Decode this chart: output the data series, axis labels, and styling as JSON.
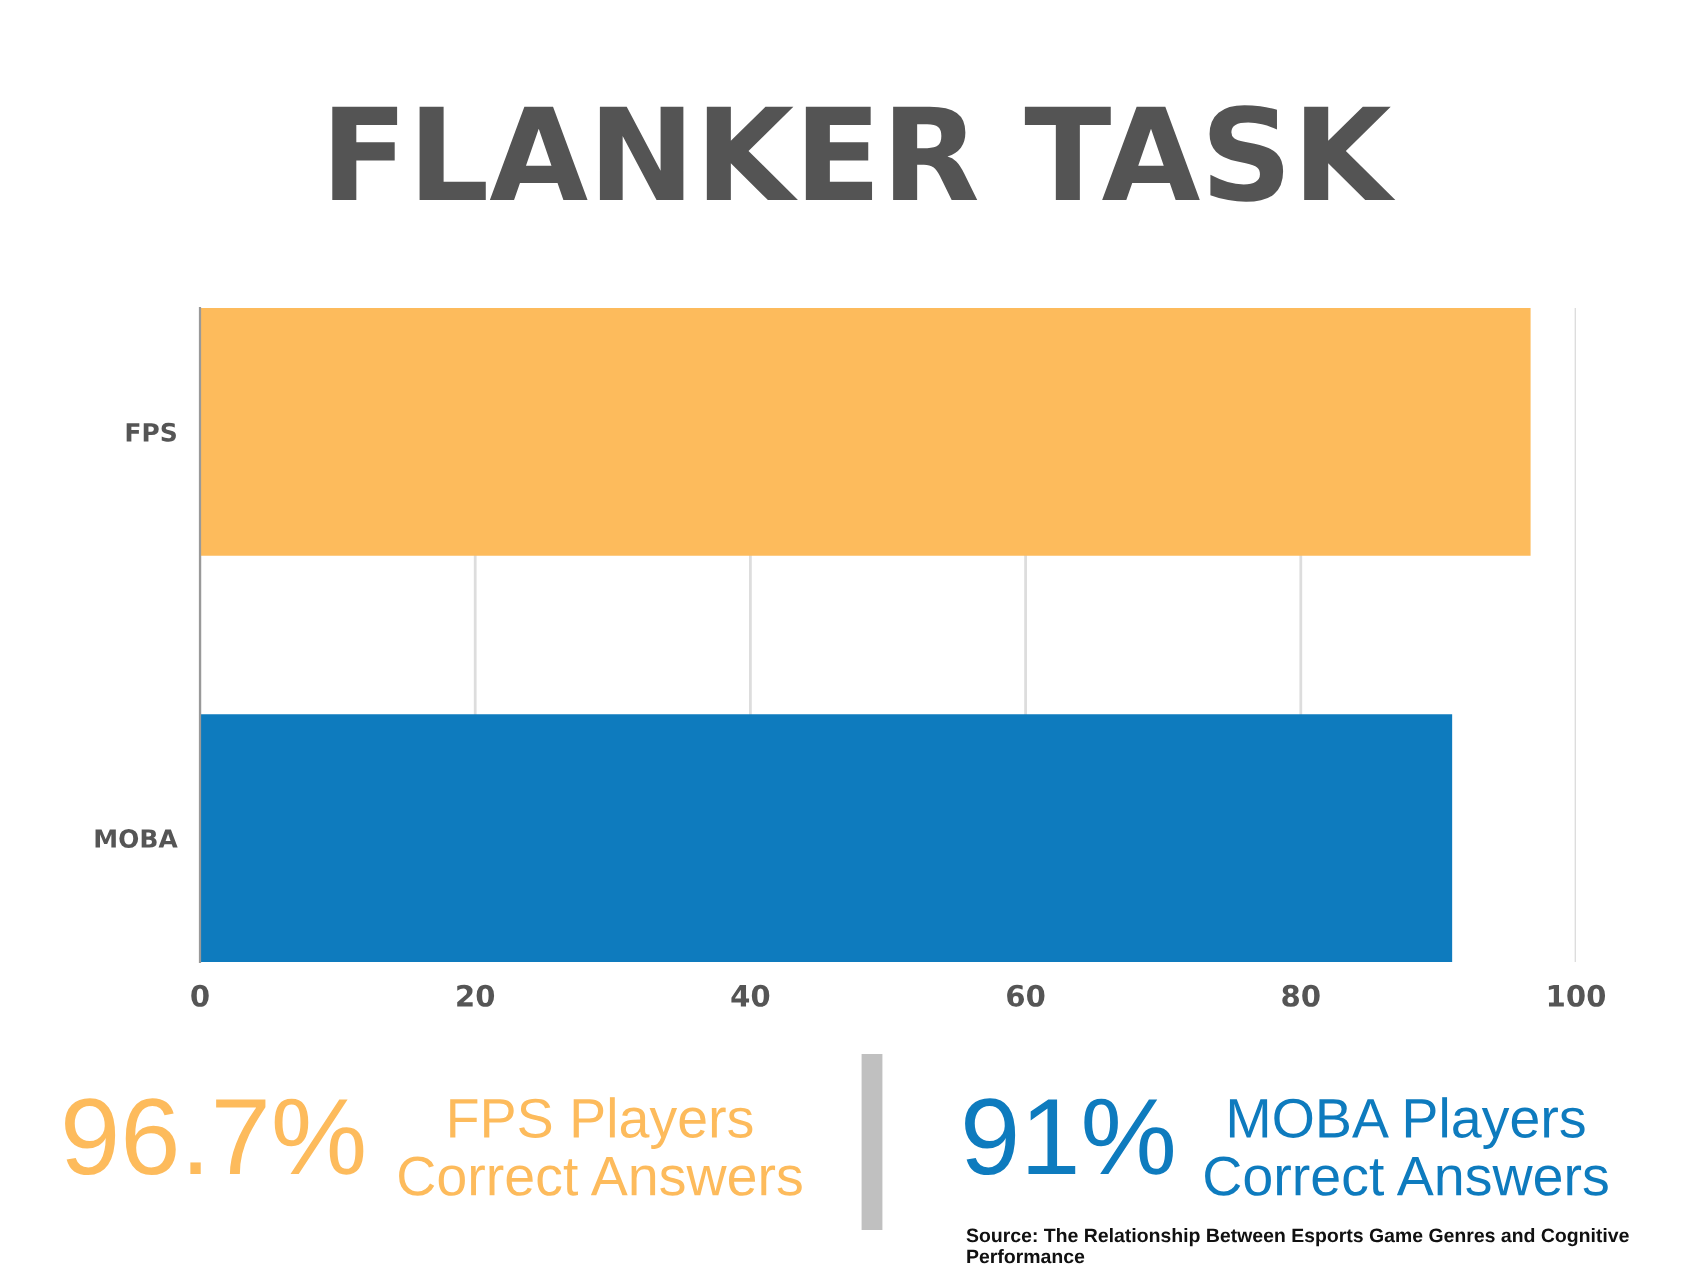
{
  "chart_data": {
    "type": "bar",
    "orientation": "horizontal",
    "title": "FLANKER TASK",
    "categories": [
      "FPS",
      "MOBA"
    ],
    "values": [
      96.7,
      91
    ],
    "colors": [
      "#fdbb5c",
      "#0e7bbe"
    ],
    "xlim": [
      0,
      100
    ],
    "xticks": [
      0,
      20,
      40,
      60,
      80,
      100
    ],
    "grid": "x",
    "annotations": [
      "96.7%",
      "FPS Players\nCorrect Answers",
      "91%",
      "MOBA Players\nCorrect Answers",
      "Source: The Relationship Between Esports Game Genres and Cognitive Performance"
    ]
  }
}
